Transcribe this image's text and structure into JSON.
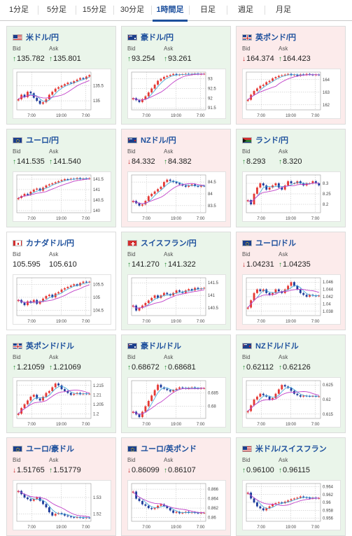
{
  "tabs": [
    {
      "label": "1分足",
      "active": false
    },
    {
      "label": "5分足",
      "active": false
    },
    {
      "label": "15分足",
      "active": false
    },
    {
      "label": "30分足",
      "active": false
    },
    {
      "label": "1時間足",
      "active": true
    },
    {
      "label": "日足",
      "active": false
    },
    {
      "label": "週足",
      "active": false
    },
    {
      "label": "月足",
      "active": false
    }
  ],
  "labels": {
    "bid": "Bid",
    "ask": "Ask"
  },
  "colors": {
    "up_candle": "#e53935",
    "down_candle": "#1e3c9c",
    "ma_short": "#39a4d6",
    "ma_long": "#c040c8",
    "up_arrow": "#1f8a2e",
    "down_arrow": "#c62828"
  },
  "cards": [
    {
      "pair": "米ドル/円",
      "flags": [
        "us",
        "jp"
      ],
      "state": "up",
      "bid": {
        "dir": "up",
        "value": "135.782"
      },
      "ask": {
        "dir": "up",
        "value": "135.801"
      },
      "chart_data": {
        "type": "candlestick",
        "x_ticks": [
          "7:00",
          "19:00",
          "7:00"
        ],
        "y_ticks": [
          135.5,
          135
        ],
        "ylim": [
          134.7,
          135.95
        ],
        "closes": [
          135.05,
          135.2,
          135.12,
          135.3,
          135.25,
          135.1,
          135.0,
          134.9,
          134.95,
          135.05,
          135.2,
          135.3,
          135.4,
          135.45,
          135.5,
          135.55,
          135.6,
          135.58,
          135.65,
          135.7,
          135.75,
          135.72,
          135.8,
          135.85
        ]
      }
    },
    {
      "pair": "豪ドル/円",
      "flags": [
        "au",
        "jp"
      ],
      "state": "up",
      "bid": {
        "dir": "up",
        "value": "93.254"
      },
      "ask": {
        "dir": "up",
        "value": "93.261"
      },
      "chart_data": {
        "type": "candlestick",
        "x_ticks": [
          "7:00",
          "19:00",
          "7:00"
        ],
        "y_ticks": [
          93,
          92.5,
          92,
          91.5
        ],
        "ylim": [
          91.4,
          93.35
        ],
        "closes": [
          92.0,
          91.9,
          91.8,
          91.95,
          92.1,
          92.3,
          92.5,
          92.7,
          92.9,
          93.0,
          93.1,
          93.15,
          93.2,
          93.25,
          93.2,
          93.22,
          93.24,
          93.26,
          93.23,
          93.25,
          93.27,
          93.24,
          93.25,
          93.26
        ]
      }
    },
    {
      "pair": "英ポンド/円",
      "flags": [
        "uk",
        "jp"
      ],
      "state": "down",
      "bid": {
        "dir": "down",
        "value": "164.374"
      },
      "ask": {
        "dir": "up",
        "value": "164.423"
      },
      "chart_data": {
        "type": "candlestick",
        "x_ticks": [
          "7:00",
          "19:00",
          "7:00"
        ],
        "y_ticks": [
          164,
          163,
          162
        ],
        "ylim": [
          161.6,
          164.6
        ],
        "closes": [
          162.4,
          162.8,
          163.1,
          163.3,
          163.5,
          163.6,
          163.8,
          163.9,
          164.1,
          164.2,
          164.3,
          164.35,
          164.4,
          164.45,
          164.35,
          164.4,
          164.3,
          164.42,
          164.38,
          164.45,
          164.4,
          164.36,
          164.4,
          164.37
        ]
      }
    },
    {
      "pair": "ユーロ/円",
      "flags": [
        "eu",
        "jp"
      ],
      "state": "up",
      "bid": {
        "dir": "up",
        "value": "141.535"
      },
      "ask": {
        "dir": "up",
        "value": "141.540"
      },
      "chart_data": {
        "type": "candlestick",
        "x_ticks": [
          "7:00",
          "19:00",
          "7:00"
        ],
        "y_ticks": [
          141.5,
          141,
          140.5,
          140
        ],
        "ylim": [
          139.9,
          141.7
        ],
        "closes": [
          140.6,
          140.7,
          140.8,
          140.75,
          140.9,
          141.0,
          141.05,
          140.95,
          141.1,
          141.2,
          141.25,
          141.3,
          141.35,
          141.4,
          141.45,
          141.5,
          141.48,
          141.52,
          141.5,
          141.55,
          141.5,
          141.53,
          141.52,
          141.54
        ]
      }
    },
    {
      "pair": "NZドル/円",
      "flags": [
        "nz",
        "jp"
      ],
      "state": "down",
      "bid": {
        "dir": "down",
        "value": "84.332"
      },
      "ask": {
        "dir": "up",
        "value": "84.382"
      },
      "chart_data": {
        "type": "candlestick",
        "x_ticks": [
          "7:00",
          "19:00",
          "7:00"
        ],
        "y_ticks": [
          84.5,
          84,
          83.5
        ],
        "ylim": [
          83.2,
          84.8
        ],
        "closes": [
          83.7,
          83.6,
          83.5,
          83.55,
          83.7,
          83.9,
          84.0,
          84.1,
          84.2,
          84.3,
          84.5,
          84.6,
          84.55,
          84.5,
          84.45,
          84.4,
          84.35,
          84.3,
          84.35,
          84.4,
          84.33,
          84.3,
          84.34,
          84.33
        ]
      }
    },
    {
      "pair": "ランド/円",
      "flags": [
        "za",
        "jp"
      ],
      "state": "up",
      "bid": {
        "dir": "up",
        "value": "8.293"
      },
      "ask": {
        "dir": "up",
        "value": "8.320"
      },
      "chart_data": {
        "type": "candlestick",
        "x_ticks": [
          "7:00",
          "19:00",
          "7:00"
        ],
        "y_ticks": [
          8.3,
          8.25,
          8.2
        ],
        "ylim": [
          8.16,
          8.34
        ],
        "closes": [
          8.22,
          8.2,
          8.25,
          8.28,
          8.3,
          8.29,
          8.27,
          8.28,
          8.29,
          8.3,
          8.28,
          8.27,
          8.29,
          8.31,
          8.3,
          8.3,
          8.31,
          8.3,
          8.29,
          8.3,
          8.3,
          8.31,
          8.3,
          8.29
        ]
      }
    },
    {
      "pair": "カナダドル/円",
      "flags": [
        "ca",
        "jp"
      ],
      "state": "neutral",
      "bid": {
        "dir": "none",
        "value": "105.595"
      },
      "ask": {
        "dir": "none",
        "value": "105.610"
      },
      "chart_data": {
        "type": "candlestick",
        "x_ticks": [
          "7:00",
          "19:00",
          "7:00"
        ],
        "y_ticks": [
          105.5,
          105,
          104.5
        ],
        "ylim": [
          104.3,
          105.75
        ],
        "closes": [
          104.9,
          104.8,
          104.7,
          104.85,
          104.8,
          104.9,
          104.75,
          104.85,
          104.95,
          105.05,
          105.1,
          105.0,
          105.15,
          105.2,
          105.3,
          105.35,
          105.4,
          105.45,
          105.5,
          105.45,
          105.55,
          105.6,
          105.58,
          105.6
        ]
      }
    },
    {
      "pair": "スイスフラン/円",
      "flags": [
        "ch",
        "jp"
      ],
      "state": "up",
      "bid": {
        "dir": "up",
        "value": "141.270"
      },
      "ask": {
        "dir": "up",
        "value": "141.322"
      },
      "chart_data": {
        "type": "candlestick",
        "x_ticks": [
          "7:00",
          "19:00",
          "7:00"
        ],
        "y_ticks": [
          141.5,
          141,
          140.5
        ],
        "ylim": [
          140.2,
          141.7
        ],
        "closes": [
          140.6,
          140.4,
          140.5,
          140.6,
          140.7,
          140.8,
          140.9,
          141.0,
          140.9,
          141.0,
          141.1,
          141.05,
          141.0,
          141.1,
          141.2,
          141.15,
          141.1,
          141.2,
          141.25,
          141.2,
          141.3,
          141.25,
          141.28,
          141.3
        ]
      }
    },
    {
      "pair": "ユーロ/ドル",
      "flags": [
        "eu",
        "us"
      ],
      "state": "down",
      "bid": {
        "dir": "down",
        "value": "1.04231"
      },
      "ask": {
        "dir": "up",
        "value": "1.04235"
      },
      "chart_data": {
        "type": "candlestick",
        "x_ticks": [
          "7:00",
          "19:00",
          "7:00"
        ],
        "y_ticks": [
          1.046,
          1.044,
          1.042,
          1.04,
          1.038
        ],
        "ylim": [
          1.0368,
          1.0472
        ],
        "closes": [
          1.039,
          1.041,
          1.043,
          1.044,
          1.0435,
          1.044,
          1.043,
          1.0425,
          1.043,
          1.044,
          1.0435,
          1.043,
          1.044,
          1.045,
          1.046,
          1.045,
          1.044,
          1.043,
          1.0425,
          1.042,
          1.0425,
          1.0423,
          1.0422,
          1.0423
        ]
      }
    },
    {
      "pair": "英ポンド/ドル",
      "flags": [
        "uk",
        "us"
      ],
      "state": "up",
      "bid": {
        "dir": "up",
        "value": "1.21059"
      },
      "ask": {
        "dir": "up",
        "value": "1.21069"
      },
      "chart_data": {
        "type": "candlestick",
        "x_ticks": [
          "7:00",
          "19:00",
          "7:00"
        ],
        "y_ticks": [
          1.215,
          1.21,
          1.205,
          1.2
        ],
        "ylim": [
          1.1975,
          1.2175
        ],
        "closes": [
          1.2,
          1.203,
          1.205,
          1.207,
          1.209,
          1.21,
          1.208,
          1.207,
          1.209,
          1.211,
          1.212,
          1.214,
          1.216,
          1.215,
          1.213,
          1.212,
          1.211,
          1.21,
          1.2105,
          1.211,
          1.2103,
          1.2107,
          1.2105,
          1.2106
        ]
      }
    },
    {
      "pair": "豪ドル/ドル",
      "flags": [
        "au",
        "us"
      ],
      "state": "up",
      "bid": {
        "dir": "up",
        "value": "0.68672"
      },
      "ask": {
        "dir": "up",
        "value": "0.68681"
      },
      "chart_data": {
        "type": "candlestick",
        "x_ticks": [
          "7:00",
          "19:00",
          "7:00"
        ],
        "y_ticks": [
          0.685,
          0.68
        ],
        "ylim": [
          0.6755,
          0.6895
        ],
        "closes": [
          0.678,
          0.677,
          0.676,
          0.678,
          0.68,
          0.682,
          0.684,
          0.686,
          0.688,
          0.687,
          0.6865,
          0.686,
          0.6855,
          0.686,
          0.6865,
          0.687,
          0.6868,
          0.6866,
          0.6868,
          0.687,
          0.6867,
          0.6866,
          0.6867,
          0.6867
        ]
      }
    },
    {
      "pair": "NZドル/ドル",
      "flags": [
        "nz",
        "us"
      ],
      "state": "up",
      "bid": {
        "dir": "up",
        "value": "0.62112"
      },
      "ask": {
        "dir": "up",
        "value": "0.62126"
      },
      "chart_data": {
        "type": "candlestick",
        "x_ticks": [
          "7:00",
          "19:00",
          "7:00"
        ],
        "y_ticks": [
          0.625,
          0.62,
          0.615
        ],
        "ylim": [
          0.6135,
          0.6265
        ],
        "closes": [
          0.616,
          0.618,
          0.62,
          0.621,
          0.622,
          0.6215,
          0.621,
          0.62,
          0.6205,
          0.622,
          0.6235,
          0.625,
          0.6245,
          0.624,
          0.623,
          0.622,
          0.6215,
          0.621,
          0.6213,
          0.6212,
          0.6211,
          0.6212,
          0.6211,
          0.6211
        ]
      }
    },
    {
      "pair": "ユーロ/豪ドル",
      "flags": [
        "eu",
        "au"
      ],
      "state": "down",
      "bid": {
        "dir": "down",
        "value": "1.51765"
      },
      "ask": {
        "dir": "up",
        "value": "1.51779"
      },
      "chart_data": {
        "type": "candlestick",
        "x_ticks": [
          "7:00",
          "19:00",
          "7:00"
        ],
        "y_ticks": [
          1.53,
          1.52
        ],
        "ylim": [
          1.5155,
          1.5385
        ],
        "closes": [
          1.534,
          1.532,
          1.53,
          1.529,
          1.528,
          1.529,
          1.53,
          1.528,
          1.526,
          1.524,
          1.521,
          1.519,
          1.52,
          1.5205,
          1.52,
          1.519,
          1.5185,
          1.518,
          1.5178,
          1.518,
          1.5177,
          1.5176,
          1.5178,
          1.5176
        ]
      }
    },
    {
      "pair": "ユーロ/英ポンド",
      "flags": [
        "eu",
        "uk"
      ],
      "state": "down",
      "bid": {
        "dir": "down",
        "value": "0.86099"
      },
      "ask": {
        "dir": "up",
        "value": "0.86107"
      },
      "chart_data": {
        "type": "candlestick",
        "x_ticks": [
          "7:00",
          "19:00",
          "7:00"
        ],
        "y_ticks": [
          0.866,
          0.864,
          0.862,
          0.86
        ],
        "ylim": [
          0.8592,
          0.8672
        ],
        "closes": [
          0.8655,
          0.864,
          0.8635,
          0.8628,
          0.8625,
          0.862,
          0.8618,
          0.862,
          0.8625,
          0.8628,
          0.8624,
          0.862,
          0.8615,
          0.861,
          0.8612,
          0.8609,
          0.861,
          0.8612,
          0.861,
          0.8611,
          0.861,
          0.8609,
          0.861,
          0.861
        ]
      }
    },
    {
      "pair": "米ドル/スイスフラン",
      "flags": [
        "us",
        "ch"
      ],
      "state": "up",
      "bid": {
        "dir": "up",
        "value": "0.96100"
      },
      "ask": {
        "dir": "up",
        "value": "0.96115"
      },
      "chart_data": {
        "type": "candlestick",
        "x_ticks": [
          "7:00",
          "19:00",
          "7:00"
        ],
        "y_ticks": [
          0.964,
          0.962,
          0.96,
          0.958,
          0.956
        ],
        "ylim": [
          0.9552,
          0.9648
        ],
        "closes": [
          0.9625,
          0.961,
          0.96,
          0.959,
          0.9585,
          0.958,
          0.9585,
          0.959,
          0.9595,
          0.9598,
          0.96,
          0.9598,
          0.9602,
          0.9605,
          0.9608,
          0.961,
          0.9612,
          0.9615,
          0.9613,
          0.9612,
          0.961,
          0.9612,
          0.961,
          0.9611
        ]
      }
    }
  ]
}
